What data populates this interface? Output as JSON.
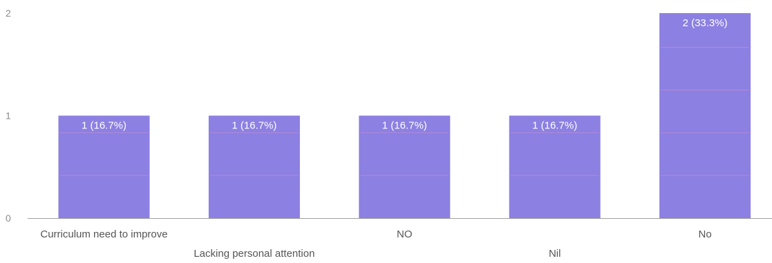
{
  "chart_data": {
    "type": "bar",
    "categories": [
      "Curriculum need to improve",
      "Lacking personal attention",
      "NO",
      "Nil",
      "No"
    ],
    "values": [
      1,
      1,
      1,
      1,
      2
    ],
    "data_labels": [
      "1 (16.7%)",
      "1 (16.7%)",
      "1 (16.7%)",
      "1 (16.7%)",
      "2 (33.3%)"
    ],
    "title": "",
    "xlabel": "",
    "ylabel": "",
    "ylim": [
      0,
      2
    ],
    "yticks": [
      "0",
      "1",
      "2"
    ],
    "grid": false,
    "legend": "none",
    "bar_color": "#8c80e2",
    "bar_line_color": "#c48ad4",
    "axis_color": "#9e9e9e",
    "tick_label_color": "#8a8a8a",
    "category_label_color": "#555555",
    "data_label_color": "#ffffff"
  }
}
